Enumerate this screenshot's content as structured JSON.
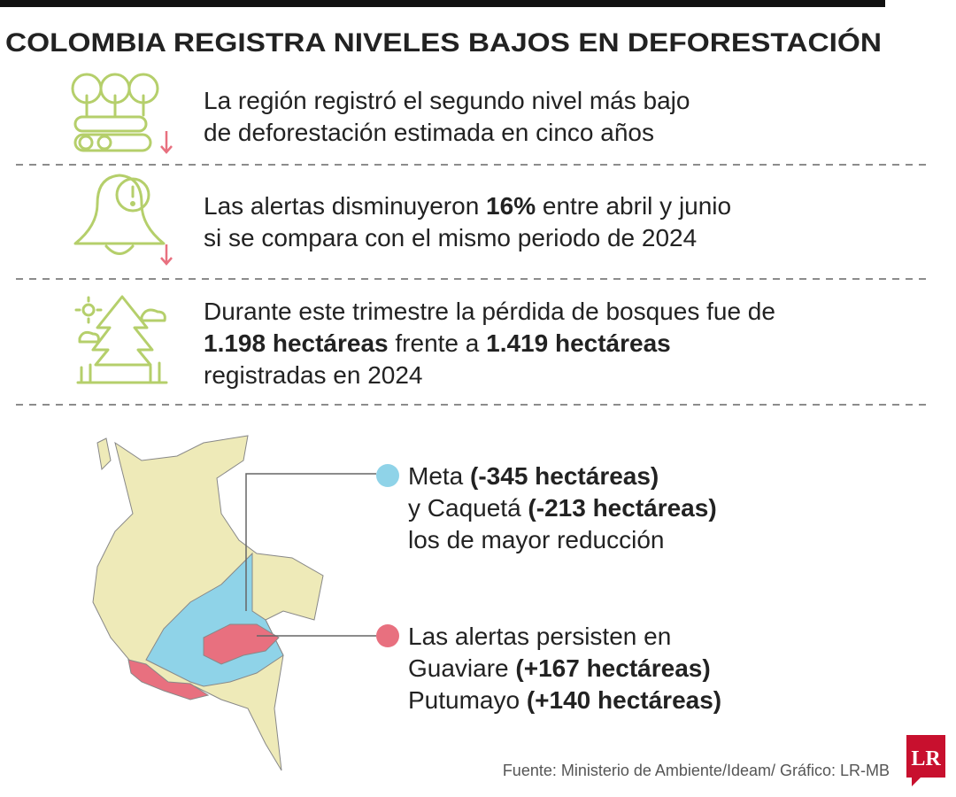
{
  "title": "COLOMBIA REGISTRA NIVELES BAJOS EN DEFORESTACIÓN",
  "items": [
    {
      "lines": [
        [
          {
            "text": "La región registró el segundo nivel más bajo"
          }
        ],
        [
          {
            "text": "de deforestación estimada en cinco años"
          }
        ]
      ]
    },
    {
      "lines": [
        [
          {
            "text": "Las alertas disminuyeron "
          },
          {
            "text": "16%",
            "bold": true
          },
          {
            "text": " entre abril y junio"
          }
        ],
        [
          {
            "text": "si se compara con el mismo periodo de 2024"
          }
        ]
      ]
    },
    {
      "lines": [
        [
          {
            "text": "Durante este trimestre la pérdida de bosques fue de"
          }
        ],
        [
          {
            "text": "1.198 hectáreas",
            "bold": true
          },
          {
            "text": " frente a "
          },
          {
            "text": "1.419 hectáreas",
            "bold": true
          }
        ],
        [
          {
            "text": "registradas en 2024"
          }
        ]
      ]
    }
  ],
  "callouts": [
    {
      "color": "#8fd3e8",
      "lines": [
        [
          {
            "text": "Meta "
          },
          {
            "text": "(-345 hectáreas)",
            "bold": true
          }
        ],
        [
          {
            "text": "y Caquetá "
          },
          {
            "text": "(-213 hectáreas)",
            "bold": true
          }
        ],
        [
          {
            "text": "los de mayor reducción"
          }
        ]
      ]
    },
    {
      "color": "#e8707f",
      "lines": [
        [
          {
            "text": "Las alertas persisten en"
          }
        ],
        [
          {
            "text": "Guaviare "
          },
          {
            "text": "(+167 hectáreas)",
            "bold": true
          }
        ],
        [
          {
            "text": "Putumayo "
          },
          {
            "text": "(+140 hectáreas)",
            "bold": true
          }
        ]
      ]
    }
  ],
  "source": "Fuente: Ministerio de Ambiente/Ideam/ Gráfico: LR-MB",
  "logo": "LR"
}
